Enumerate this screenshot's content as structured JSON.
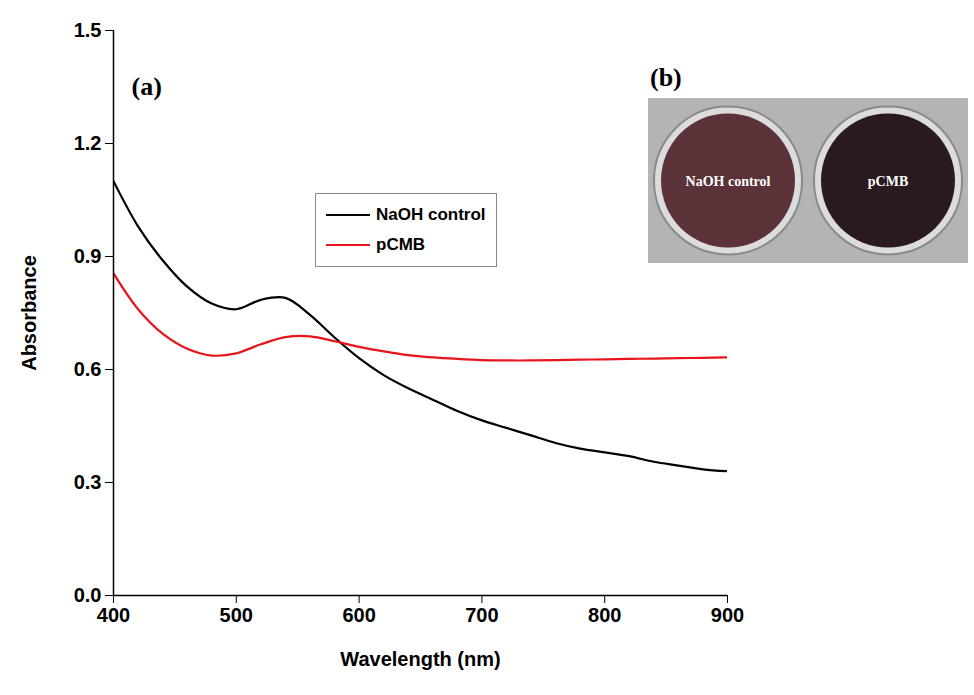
{
  "chart_data": {
    "type": "line",
    "title": "(a)",
    "x_label": "Wavelength (nm)",
    "y_label": "Absorbance",
    "x": [
      400,
      420,
      440,
      460,
      480,
      500,
      520,
      540,
      560,
      580,
      600,
      620,
      640,
      660,
      680,
      700,
      720,
      740,
      760,
      780,
      800,
      820,
      840,
      860,
      880,
      900
    ],
    "series": [
      {
        "name": "NaOH control",
        "color": "#000000",
        "values": [
          1.1,
          0.98,
          0.89,
          0.82,
          0.775,
          0.76,
          0.785,
          0.79,
          0.745,
          0.685,
          0.63,
          0.585,
          0.55,
          0.52,
          0.49,
          0.465,
          0.445,
          0.425,
          0.405,
          0.39,
          0.38,
          0.37,
          0.355,
          0.345,
          0.335,
          0.33
        ]
      },
      {
        "name": "pCMB",
        "color": "#e8141b",
        "values": [
          0.855,
          0.76,
          0.695,
          0.655,
          0.637,
          0.643,
          0.667,
          0.686,
          0.688,
          0.675,
          0.66,
          0.648,
          0.638,
          0.632,
          0.628,
          0.625,
          0.624,
          0.624,
          0.625,
          0.626,
          0.627,
          0.628,
          0.629,
          0.63,
          0.631,
          0.632
        ]
      }
    ],
    "xlim": [
      400,
      900
    ],
    "xticks": [
      400,
      500,
      600,
      700,
      800,
      900
    ],
    "ylim": [
      0,
      1.5
    ],
    "yticks": [
      {
        "value": 0,
        "label": "0.0"
      },
      0.3,
      0.6,
      0.9,
      1.2,
      1.5
    ],
    "grid": false,
    "legend": "upper-center"
  },
  "panel_b": {
    "title": "(b)",
    "wells": [
      {
        "label": "NaOH control",
        "color": "#5a3238"
      },
      {
        "label": "pCMB",
        "color": "#2a1a1e"
      }
    ]
  }
}
